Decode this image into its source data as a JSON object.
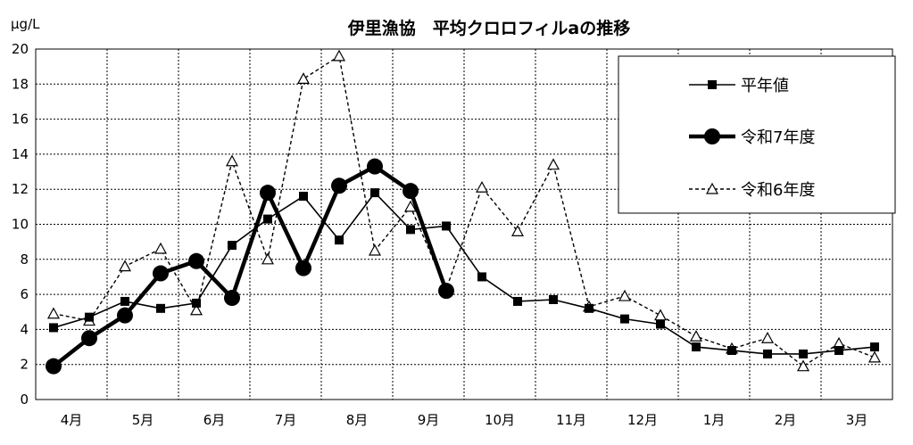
{
  "chart_data": {
    "type": "line",
    "title": "伊里漁協　平均クロロフィルaの推移",
    "ylabel": "μg/L",
    "xlabel": "",
    "ylim": [
      0,
      20
    ],
    "yticks": [
      0,
      2,
      4,
      6,
      8,
      10,
      12,
      14,
      16,
      18,
      20
    ],
    "grid": true,
    "legend_position": "top-right",
    "month_labels": [
      "4月",
      "5月",
      "6月",
      "7月",
      "8月",
      "9月",
      "10月",
      "11月",
      "12月",
      "1月",
      "2月",
      "3月"
    ],
    "series": [
      {
        "name": "平年値",
        "style": "solid-thin-square",
        "color": "#000000",
        "values": [
          4.1,
          4.7,
          5.6,
          5.2,
          5.5,
          8.8,
          10.3,
          11.6,
          9.1,
          11.8,
          9.7,
          9.9,
          7.0,
          5.6,
          5.7,
          5.2,
          4.6,
          4.3,
          3.0,
          2.8,
          2.6,
          2.6,
          2.8,
          3.0
        ]
      },
      {
        "name": "令和7年度",
        "style": "solid-thick-circle",
        "color": "#000000",
        "values": [
          1.9,
          3.5,
          4.8,
          7.2,
          7.9,
          5.8,
          11.8,
          7.5,
          12.2,
          13.3,
          11.9,
          6.2,
          null,
          null,
          null,
          null,
          null,
          null,
          null,
          null,
          null,
          null,
          null,
          null
        ]
      },
      {
        "name": "令和6年度",
        "style": "dashed-thin-triangle",
        "color": "#000000",
        "values": [
          4.9,
          4.5,
          7.6,
          8.6,
          5.1,
          13.6,
          8.0,
          18.3,
          19.6,
          8.5,
          11.0,
          6.3,
          12.1,
          9.6,
          13.4,
          5.3,
          5.9,
          4.8,
          3.6,
          2.9,
          3.5,
          1.9,
          3.2,
          2.4
        ]
      }
    ]
  }
}
